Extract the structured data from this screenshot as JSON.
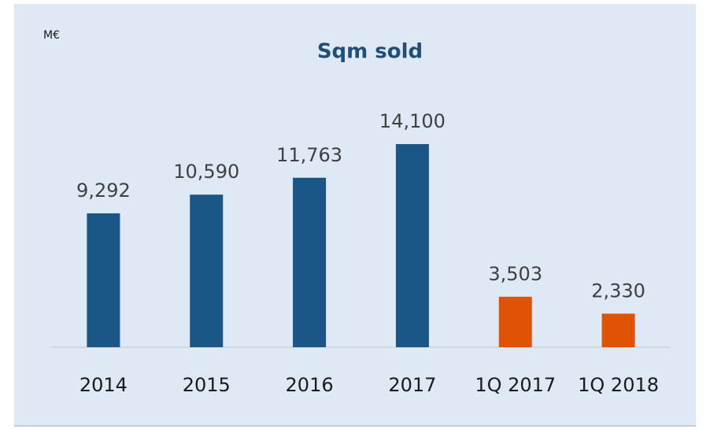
{
  "chart_data": {
    "type": "bar",
    "title": "Sqm sold",
    "unit_label": "M€",
    "categories": [
      "2014",
      "2015",
      "2016",
      "2017",
      "1Q 2017",
      "1Q 2018"
    ],
    "values": [
      9292,
      10590,
      11763,
      14100,
      3503,
      2330
    ],
    "value_labels": [
      "9,292",
      "10,590",
      "11,763",
      "14,100",
      "3,503",
      "2,330"
    ],
    "colors": [
      "#1a5686",
      "#1a5686",
      "#1a5686",
      "#1a5686",
      "#e05206",
      "#e05206"
    ]
  }
}
